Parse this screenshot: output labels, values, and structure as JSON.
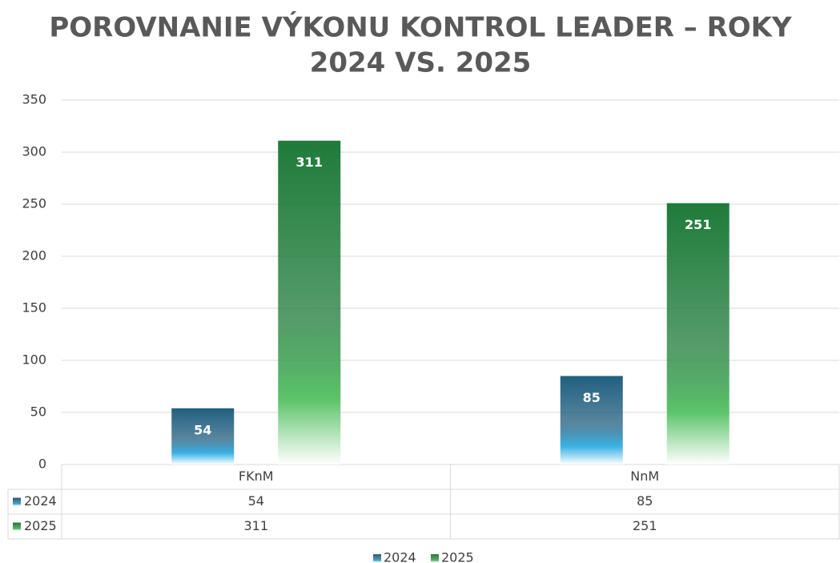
{
  "chart_data": {
    "type": "bar",
    "title": [
      "POROVNANIE VÝKONU KONTROL LEADER – ROKY",
      "2024 VS. 2025"
    ],
    "categories": [
      "FKnM",
      "NnM"
    ],
    "series": [
      {
        "name": "2024",
        "color": "#215f80",
        "values": [
          54,
          85
        ]
      },
      {
        "name": "2025",
        "color": "#1e7b3a",
        "values": [
          311,
          251
        ]
      }
    ],
    "ylim": [
      0,
      350
    ],
    "yticks": [
      0,
      50,
      100,
      150,
      200,
      250,
      300,
      350
    ],
    "grid": true,
    "data_table": true,
    "legend": "bottom"
  }
}
